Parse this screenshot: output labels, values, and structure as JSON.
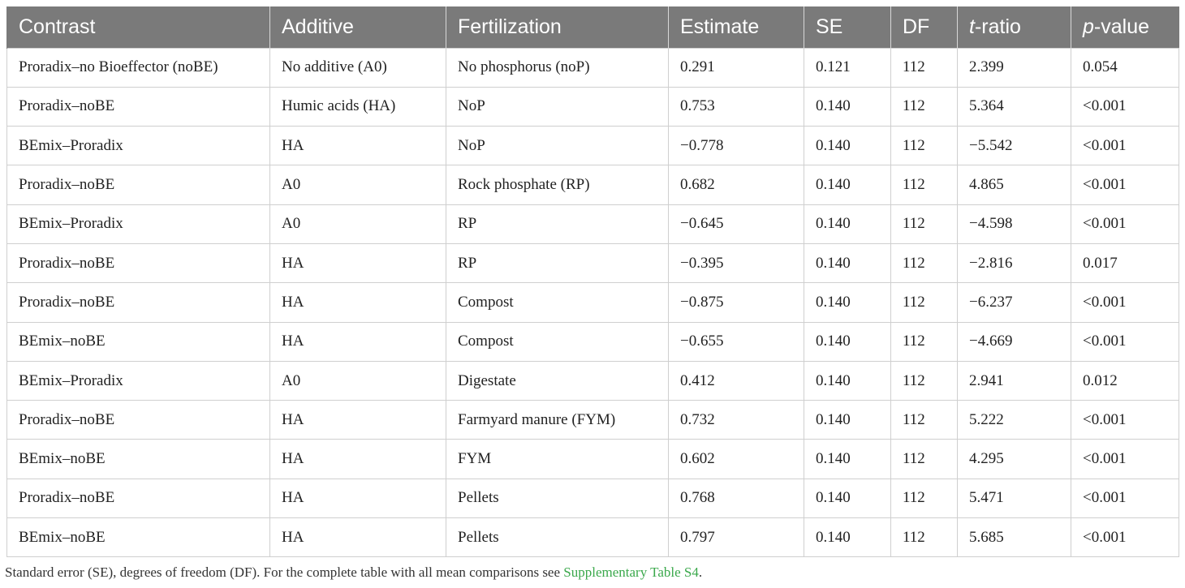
{
  "table": {
    "headers": [
      {
        "main": "Contrast"
      },
      {
        "main": "Additive"
      },
      {
        "main": "Fertilization"
      },
      {
        "main": "Estimate"
      },
      {
        "main": "SE"
      },
      {
        "main": "DF"
      },
      {
        "italic": "t",
        "rest": "-ratio"
      },
      {
        "italic": "p",
        "rest": "-value"
      }
    ],
    "rows": [
      [
        "Proradix–no Bioeffector (noBE)",
        "No additive (A0)",
        "No phosphorus (noP)",
        "0.291",
        "0.121",
        "112",
        "2.399",
        "0.054"
      ],
      [
        "Proradix–noBE",
        "Humic acids (HA)",
        "NoP",
        "0.753",
        "0.140",
        "112",
        "5.364",
        "<0.001"
      ],
      [
        "BEmix–Proradix",
        "HA",
        "NoP",
        "−0.778",
        "0.140",
        "112",
        "−5.542",
        "<0.001"
      ],
      [
        "Proradix–noBE",
        "A0",
        "Rock phosphate (RP)",
        "0.682",
        "0.140",
        "112",
        "4.865",
        "<0.001"
      ],
      [
        "BEmix–Proradix",
        "A0",
        "RP",
        "−0.645",
        "0.140",
        "112",
        "−4.598",
        "<0.001"
      ],
      [
        "Proradix–noBE",
        "HA",
        "RP",
        "−0.395",
        "0.140",
        "112",
        "−2.816",
        "0.017"
      ],
      [
        "Proradix–noBE",
        "HA",
        "Compost",
        "−0.875",
        "0.140",
        "112",
        "−6.237",
        "<0.001"
      ],
      [
        "BEmix–noBE",
        "HA",
        "Compost",
        "−0.655",
        "0.140",
        "112",
        "−4.669",
        "<0.001"
      ],
      [
        "BEmix–Proradix",
        "A0",
        "Digestate",
        "0.412",
        "0.140",
        "112",
        "2.941",
        "0.012"
      ],
      [
        "Proradix–noBE",
        "HA",
        "Farmyard manure (FYM)",
        "0.732",
        "0.140",
        "112",
        "5.222",
        "<0.001"
      ],
      [
        "BEmix–noBE",
        "HA",
        "FYM",
        "0.602",
        "0.140",
        "112",
        "4.295",
        "<0.001"
      ],
      [
        "Proradix–noBE",
        "HA",
        "Pellets",
        "0.768",
        "0.140",
        "112",
        "5.471",
        "<0.001"
      ],
      [
        "BEmix–noBE",
        "HA",
        "Pellets",
        "0.797",
        "0.140",
        "112",
        "5.685",
        "<0.001"
      ]
    ]
  },
  "footnote": {
    "text": "Standard error (SE), degrees of freedom (DF). For the complete table with all mean comparisons see ",
    "link": "Supplementary Table S4",
    "end": "."
  },
  "colors": {
    "header_bg": "#7a7a7a",
    "link": "#3aa84b"
  }
}
